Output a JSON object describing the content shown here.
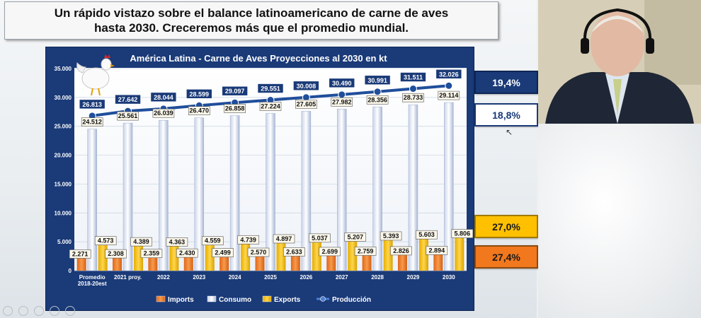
{
  "slide": {
    "title_line1": "Un rápido vistazo sobre el balance latinoamericano de carne de aves",
    "title_line2": "hasta 2030. Creceremos más que el promedio mundial."
  },
  "side_percentages": [
    "19,4%",
    "18,8%",
    "27,0%",
    "27,4%"
  ],
  "colors": {
    "panel_bg": "#1a3a78",
    "imports": "#f2781d",
    "consumo": "#e8ecf5",
    "exports": "#ffc000",
    "produccion": "#1f4e9b"
  },
  "chart_data": {
    "type": "bar",
    "title": "América Latina - Carne de Aves Proyecciones al 2030 en kt",
    "categories": [
      [
        "Promedio",
        "2018-20est"
      ],
      [
        "2021 proy."
      ],
      [
        "2022"
      ],
      [
        "2023"
      ],
      [
        "2024"
      ],
      [
        "2025"
      ],
      [
        "2026"
      ],
      [
        "2027"
      ],
      [
        "2028"
      ],
      [
        "2029"
      ],
      [
        "2030"
      ]
    ],
    "ylim": [
      0,
      35000
    ],
    "yticks": [
      0,
      5000,
      10000,
      15000,
      20000,
      25000,
      30000,
      35000
    ],
    "ytick_labels": [
      "0",
      "5.000",
      "10.000",
      "15.000",
      "20.000",
      "25.000",
      "30.000",
      "35.000"
    ],
    "legend_position": "bottom",
    "series": [
      {
        "name": "Imports",
        "kind": "bar",
        "values": [
          2271,
          2308,
          2359,
          2430,
          2499,
          2570,
          2633,
          2699,
          2759,
          2826,
          2894
        ],
        "labels": [
          "2.271",
          "2.308",
          "2.359",
          "2.430",
          "2.499",
          "2.570",
          "2.633",
          "2.699",
          "2.759",
          "2.826",
          "2.894"
        ]
      },
      {
        "name": "Consumo",
        "kind": "bar",
        "values": [
          24512,
          25561,
          26039,
          26470,
          26858,
          27224,
          27605,
          27982,
          28356,
          28733,
          29114
        ],
        "labels": [
          "24.512",
          "25.561",
          "26.039",
          "26.470",
          "26.858",
          "27.224",
          "27.605",
          "27.982",
          "28.356",
          "28.733",
          "29.114"
        ]
      },
      {
        "name": "Exports",
        "kind": "bar",
        "values": [
          4573,
          4389,
          4363,
          4559,
          4739,
          4897,
          5037,
          5207,
          5393,
          5603,
          5806
        ],
        "labels": [
          "4.573",
          "4.389",
          "4.363",
          "4.559",
          "4.739",
          "4.897",
          "5.037",
          "5.207",
          "5.393",
          "5.603",
          "5.806"
        ]
      },
      {
        "name": "Producción",
        "kind": "line",
        "values": [
          26813,
          27642,
          28044,
          28599,
          29097,
          29551,
          30008,
          30490,
          30991,
          31511,
          32026
        ],
        "labels": [
          "26.813",
          "27.642",
          "28.044",
          "28.599",
          "29.097",
          "29.551",
          "30.008",
          "30.490",
          "30.991",
          "31.511",
          "32.026"
        ]
      }
    ]
  }
}
